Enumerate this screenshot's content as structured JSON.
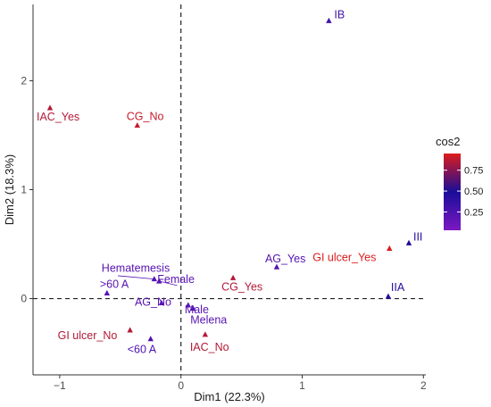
{
  "chart_data": {
    "type": "scatter",
    "title": "",
    "xlabel": "Dim1 (22.3%)",
    "ylabel": "Dim2 (18.3%)",
    "xlim": [
      -1.22,
      2.02
    ],
    "ylim": [
      -0.7,
      2.7
    ],
    "xticks": [
      -1,
      0,
      1,
      2
    ],
    "yticks": [
      0,
      1,
      2
    ],
    "xtick_labels": [
      "−1",
      "0",
      "1",
      "2"
    ],
    "ytick_labels": [
      "0",
      "1",
      "2"
    ],
    "reference_lines": {
      "x": 0,
      "y": 0,
      "style": "dashed"
    },
    "grid": false,
    "legend": {
      "title": "cos2",
      "position": "right",
      "ticks": [
        0.25,
        0.5,
        0.75
      ],
      "tick_labels": [
        "0.25",
        "0.50",
        "0.75"
      ],
      "range": [
        0.03,
        0.95
      ],
      "colors": {
        "low": "#7b18c1",
        "mid": "#1a0d9a",
        "high": "#dc1c1c"
      }
    },
    "points": [
      {
        "label": "IB",
        "x": 1.22,
        "y": 2.55,
        "cos2": 0.3
      },
      {
        "label": "IAC_Yes",
        "x": -1.08,
        "y": 1.75,
        "cos2": 0.85
      },
      {
        "label": "CG_No",
        "x": -0.36,
        "y": 1.59,
        "cos2": 0.9
      },
      {
        "label": "III",
        "x": 1.88,
        "y": 0.51,
        "cos2": 0.5
      },
      {
        "label": "GI ulcer_Yes",
        "x": 1.72,
        "y": 0.46,
        "cos2": 0.95
      },
      {
        "label": "AG_Yes",
        "x": 0.79,
        "y": 0.29,
        "cos2": 0.22
      },
      {
        "label": "CG_Yes",
        "x": 0.43,
        "y": 0.19,
        "cos2": 0.85
      },
      {
        "label": "Hematemesis",
        "x": -0.22,
        "y": 0.18,
        "cos2": 0.2
      },
      {
        "label": "Female",
        "x": -0.18,
        "y": 0.16,
        "cos2": 0.2
      },
      {
        "label": ">60 A",
        "x": -0.61,
        "y": 0.05,
        "cos2": 0.2
      },
      {
        "label": "IIA",
        "x": 1.71,
        "y": 0.02,
        "cos2": 0.45
      },
      {
        "label": "AG_No",
        "x": -0.16,
        "y": -0.04,
        "cos2": 0.2
      },
      {
        "label": "Male",
        "x": 0.06,
        "y": -0.06,
        "cos2": 0.2
      },
      {
        "label": "Melena",
        "x": 0.1,
        "y": -0.09,
        "cos2": 0.2
      },
      {
        "label": "GI ulcer_No",
        "x": -0.42,
        "y": -0.29,
        "cos2": 0.85
      },
      {
        "label": "IAC_No",
        "x": 0.2,
        "y": -0.33,
        "cos2": 0.85
      },
      {
        "label": "<60 A",
        "x": -0.25,
        "y": -0.37,
        "cos2": 0.25
      }
    ]
  }
}
